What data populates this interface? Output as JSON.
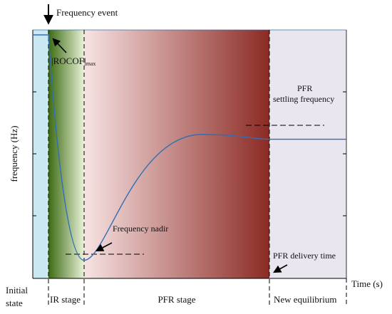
{
  "chart_data": {
    "type": "line",
    "title": "",
    "xlabel": "Time (s)",
    "ylabel": "frequency (Hz)",
    "grid": false,
    "legend": "none",
    "stages": [
      {
        "label": "Initial\nstate",
        "color": "#c9e8f2"
      },
      {
        "label": "IR stage",
        "color_start": "#3d6b12",
        "color_end": "#e8f2d8"
      },
      {
        "label": "PFR stage",
        "color_start": "#f7e3e3",
        "color_end": "#8c2a24"
      },
      {
        "label": "New equilibrium",
        "color": "#e9e6ef"
      }
    ],
    "series": [
      {
        "color": "#2f6fb5",
        "description_points": [
          {
            "phase": "initial",
            "frequency": 1.0
          },
          {
            "phase": "nadir",
            "frequency": 0.05
          },
          {
            "phase": "overshoot",
            "frequency": 0.58
          },
          {
            "phase": "settled",
            "frequency": 0.56
          }
        ]
      }
    ],
    "annotations": {
      "event": "Frequency event",
      "rocof": "|ROCOF|",
      "rocof_sub": "max",
      "nadir": "Frequency nadir",
      "settling_line1": "PFR",
      "settling_line2": "settling frequency",
      "delivery": "PFR delivery time"
    }
  }
}
